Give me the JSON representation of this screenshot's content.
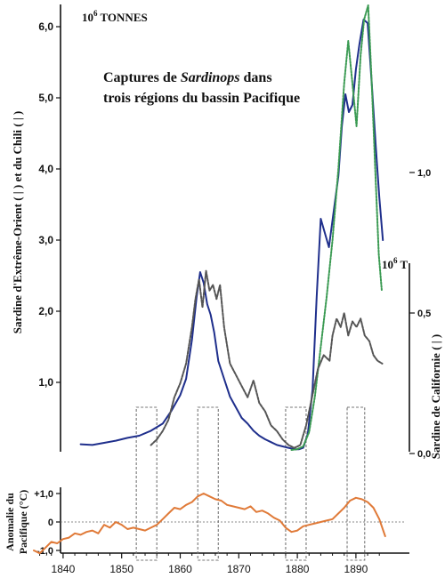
{
  "colors": {
    "far_east": "#1f2f8c",
    "chile": "#3a9a52",
    "california": "#555555",
    "anomaly": "#e07a38",
    "axis": "#111111",
    "box": "#777777"
  },
  "chart_data": {
    "type": "line",
    "title_line1_pre": "Captures de ",
    "title_line1_italic": "Sardinops",
    "title_line1_post": " dans",
    "title_line2": "trois régions du bassin Pacifique",
    "left_unit_base": "10",
    "left_unit_exp": "6",
    "left_unit_word": "TONNES",
    "left_axis_label": "Sardine d'Extrême-Orient ( | ) et du Chili ( | )",
    "right_unit_base": "10",
    "right_unit_exp": "6",
    "right_unit_word": "T",
    "right_axis_label": "Sardine de Californie ( | )",
    "anomaly_axis_label_1": "Anomalie du",
    "anomaly_axis_label_2": "Pacifique (°C)",
    "x_ticks": [
      "1840",
      "1850",
      "1860",
      "1870",
      "1880",
      "1890"
    ],
    "x_tick_values": [
      1840,
      1850,
      1860,
      1870,
      1880,
      1890
    ],
    "y_left_ticks": [
      "1,0",
      "2,0",
      "3,0",
      "4,0",
      "5,0",
      "6,0"
    ],
    "y_left_tick_values": [
      1,
      2,
      3,
      4,
      5,
      6
    ],
    "y_right_ticks": [
      "0,0",
      "0,5",
      "1,0"
    ],
    "y_right_tick_values": [
      0,
      0.5,
      1.0
    ],
    "y_anom_ticks": [
      "+1,0",
      "0",
      "-1,0"
    ],
    "y_anom_tick_values": [
      1,
      0,
      -1
    ],
    "xlim": [
      1835,
      1896
    ],
    "y_left_lim": [
      0,
      6.5
    ],
    "y_right_lim": [
      0,
      1.3
    ],
    "y_anom_lim": [
      -1.5,
      1.5
    ],
    "highlight_periods": [
      [
        1852.5,
        1856
      ],
      [
        1863,
        1866.5
      ],
      [
        1878,
        1881.5
      ],
      [
        1888.5,
        1891.5
      ]
    ],
    "series": [
      {
        "key": "far_east",
        "axis": "left",
        "style": "solid",
        "x": [
          1843,
          1845,
          1847,
          1849,
          1851,
          1853,
          1855,
          1857,
          1858.5,
          1860,
          1861,
          1862,
          1862.8,
          1863.4,
          1864,
          1864.6,
          1865.2,
          1865.8,
          1866.5,
          1867.5,
          1868.5,
          1869.5,
          1870.5,
          1871.5,
          1872.5,
          1873.5,
          1874.5,
          1875.5,
          1876.5,
          1877.5,
          1878.5,
          1879.5,
          1880.3,
          1881,
          1881.8,
          1882.6,
          1883.3,
          1884,
          1884.7,
          1885.4,
          1886.2,
          1887,
          1887.6,
          1888.2,
          1888.8,
          1889.4,
          1890,
          1890.6,
          1891.3,
          1892,
          1892.7,
          1893.4,
          1894,
          1894.6
        ],
        "y": [
          0.13,
          0.12,
          0.15,
          0.18,
          0.22,
          0.25,
          0.32,
          0.42,
          0.6,
          0.82,
          1.05,
          1.6,
          2.2,
          2.55,
          2.4,
          2.1,
          1.95,
          1.7,
          1.3,
          1.05,
          0.8,
          0.65,
          0.5,
          0.42,
          0.32,
          0.25,
          0.2,
          0.16,
          0.12,
          0.1,
          0.08,
          0.06,
          0.06,
          0.08,
          0.28,
          0.9,
          2.2,
          3.3,
          3.1,
          2.9,
          3.4,
          3.9,
          4.6,
          5.05,
          4.8,
          4.9,
          5.4,
          5.75,
          6.1,
          6.05,
          5.2,
          4.3,
          3.6,
          3.0
        ]
      },
      {
        "key": "chile",
        "axis": "left",
        "style": "dotted",
        "x": [
          1879,
          1880,
          1881,
          1882,
          1883,
          1884,
          1885,
          1886,
          1887,
          1888,
          1888.7,
          1889.4,
          1890.1,
          1890.8,
          1891.4,
          1892.1,
          1892.7,
          1893.3,
          1893.9,
          1894.4
        ],
        "y": [
          0.05,
          0.06,
          0.1,
          0.3,
          0.8,
          1.5,
          2.2,
          3.0,
          4.0,
          5.2,
          5.8,
          5.2,
          4.6,
          5.6,
          6.1,
          6.3,
          5.2,
          4.0,
          2.8,
          2.3
        ]
      },
      {
        "key": "california",
        "axis": "right",
        "style": "dashed",
        "x": [
          1855,
          1856,
          1857,
          1858,
          1859,
          1860,
          1861,
          1862,
          1862.6,
          1863.2,
          1863.8,
          1864.4,
          1865,
          1865.6,
          1866.2,
          1866.8,
          1867.5,
          1868.5,
          1869.5,
          1870.5,
          1871.5,
          1872.5,
          1873.5,
          1874.5,
          1875.5,
          1876.5,
          1877.5,
          1878.5,
          1879.5,
          1880.5,
          1881.5,
          1882.5,
          1883.5,
          1884.5,
          1885.5,
          1886,
          1886.7,
          1887.4,
          1888,
          1888.7,
          1889.4,
          1890.1,
          1890.8,
          1891.5,
          1892.3,
          1893,
          1893.7,
          1894.5
        ],
        "y": [
          0.03,
          0.05,
          0.08,
          0.12,
          0.2,
          0.25,
          0.32,
          0.45,
          0.55,
          0.62,
          0.52,
          0.65,
          0.58,
          0.6,
          0.55,
          0.6,
          0.45,
          0.32,
          0.28,
          0.24,
          0.2,
          0.26,
          0.18,
          0.15,
          0.1,
          0.08,
          0.05,
          0.03,
          0.02,
          0.03,
          0.1,
          0.2,
          0.3,
          0.35,
          0.33,
          0.42,
          0.48,
          0.45,
          0.5,
          0.42,
          0.47,
          0.45,
          0.48,
          0.42,
          0.4,
          0.35,
          0.33,
          0.32
        ]
      },
      {
        "key": "anomaly",
        "axis": "anomaly",
        "style": "solid",
        "x": [
          1835,
          1836,
          1837,
          1838,
          1839,
          1840,
          1841,
          1842,
          1843,
          1844,
          1845,
          1846,
          1847,
          1848,
          1849,
          1850,
          1851,
          1852,
          1853,
          1854,
          1855,
          1856,
          1857,
          1858,
          1859,
          1860,
          1861,
          1862,
          1863,
          1864,
          1865,
          1866,
          1867,
          1868,
          1869,
          1870,
          1871,
          1872,
          1873,
          1874,
          1875,
          1876,
          1877,
          1878,
          1879,
          1880,
          1881,
          1882,
          1883,
          1884,
          1885,
          1886,
          1887,
          1888,
          1889,
          1890,
          1891,
          1892,
          1893,
          1894,
          1895
        ],
        "y": [
          -1.0,
          -1.1,
          -0.9,
          -0.7,
          -0.75,
          -0.6,
          -0.55,
          -0.4,
          -0.45,
          -0.35,
          -0.3,
          -0.4,
          -0.1,
          -0.2,
          0.0,
          -0.1,
          -0.25,
          -0.2,
          -0.25,
          -0.3,
          -0.2,
          -0.1,
          0.1,
          0.3,
          0.5,
          0.45,
          0.6,
          0.7,
          0.9,
          1.0,
          0.9,
          0.8,
          0.75,
          0.6,
          0.55,
          0.5,
          0.45,
          0.55,
          0.35,
          0.4,
          0.3,
          0.15,
          0.05,
          -0.2,
          -0.35,
          -0.3,
          -0.15,
          -0.1,
          -0.05,
          0.0,
          0.05,
          0.1,
          0.3,
          0.5,
          0.75,
          0.85,
          0.8,
          0.7,
          0.5,
          0.1,
          -0.5
        ]
      }
    ]
  }
}
